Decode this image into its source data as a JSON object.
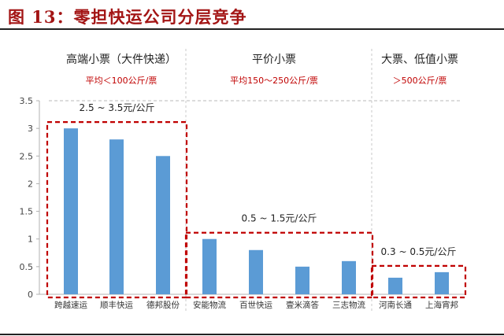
{
  "figure": {
    "title": "图 13：零担快运公司分层竞争"
  },
  "tiers": [
    {
      "name": "高端小票（大件快递）",
      "note": "平均＜100公斤/票",
      "price": "2.5 ~ 3.5元/公斤"
    },
    {
      "name": "平价小票",
      "note": "平均150～250公斤/票",
      "price": "0.5 ~ 1.5元/公斤"
    },
    {
      "name": "大票、低值小票",
      "note": "＞500公斤/票",
      "price": "0.3 ~ 0.5元/公斤"
    }
  ],
  "chart_data": {
    "type": "bar",
    "categories": [
      "跨越速运",
      "顺丰快运",
      "德邦股份",
      "安能物流",
      "百世快运",
      "壹米滴答",
      "三志物流",
      "河南长通",
      "上海宵邦"
    ],
    "values": [
      3.0,
      2.8,
      2.5,
      1.0,
      0.8,
      0.5,
      0.6,
      0.3,
      0.4
    ],
    "groups": [
      [
        0,
        2
      ],
      [
        3,
        6
      ],
      [
        7,
        8
      ]
    ],
    "ylim": [
      0,
      3.5
    ],
    "yticks": [
      0,
      0.5,
      1,
      1.5,
      2,
      2.5,
      3,
      3.5
    ],
    "ytick_labels": [
      "0",
      "0.5",
      "1",
      "1.5",
      "2",
      "2.5",
      "3",
      "3.5"
    ],
    "grid": false,
    "bar_color": "#5b9bd5",
    "annotation_color": "#c00000"
  }
}
